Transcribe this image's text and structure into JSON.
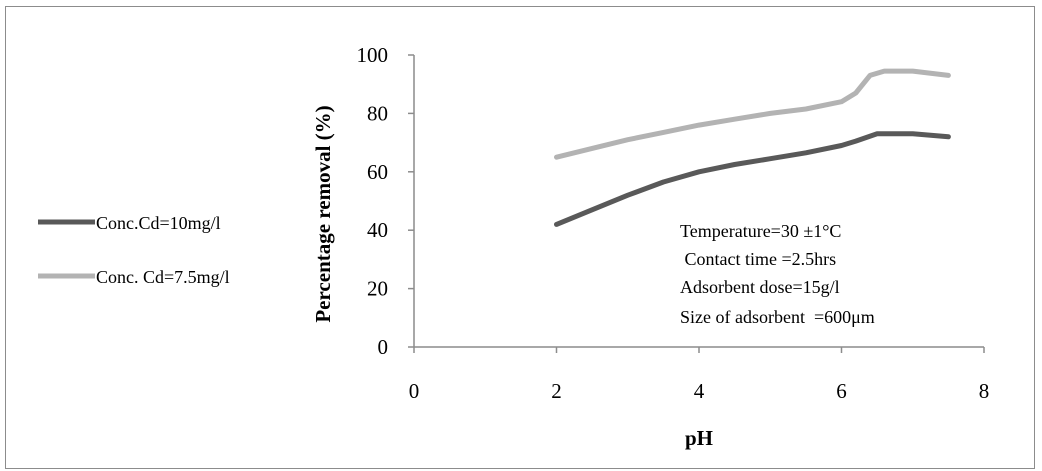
{
  "chart_data": {
    "type": "line",
    "xlabel": "pH",
    "ylabel": "Percentage  removal  (%)",
    "xlim": [
      0,
      8
    ],
    "ylim": [
      0,
      100
    ],
    "xticks": [
      0,
      2,
      4,
      6,
      8
    ],
    "yticks": [
      0,
      20,
      40,
      60,
      80,
      100
    ],
    "grid": false,
    "legend_position": "left",
    "series": [
      {
        "name": "Conc.Cd=10mg/l",
        "color": "#595959",
        "x": [
          2,
          2.5,
          3,
          3.5,
          4,
          4.5,
          5,
          5.5,
          6,
          6.2,
          6.5,
          7,
          7.5
        ],
        "y": [
          42,
          47,
          52,
          56.5,
          60,
          62.5,
          64.5,
          66.5,
          69,
          70.5,
          73,
          73,
          72
        ]
      },
      {
        "name": "Conc. Cd=7.5mg/l",
        "color": "#b3b3b3",
        "x": [
          2,
          2.5,
          3,
          3.5,
          4,
          4.5,
          5,
          5.5,
          6,
          6.2,
          6.4,
          6.6,
          7,
          7.5
        ],
        "y": [
          65,
          68,
          71,
          73.5,
          76,
          78,
          80,
          81.5,
          84,
          87,
          93,
          94.5,
          94.5,
          93
        ]
      }
    ],
    "annotations": [
      "Temperature=30 ±1°C",
      " Contact time =2.5hrs",
      "Adsorbent dose=15g/l",
      "Size of adsorbent  =600μm"
    ]
  }
}
